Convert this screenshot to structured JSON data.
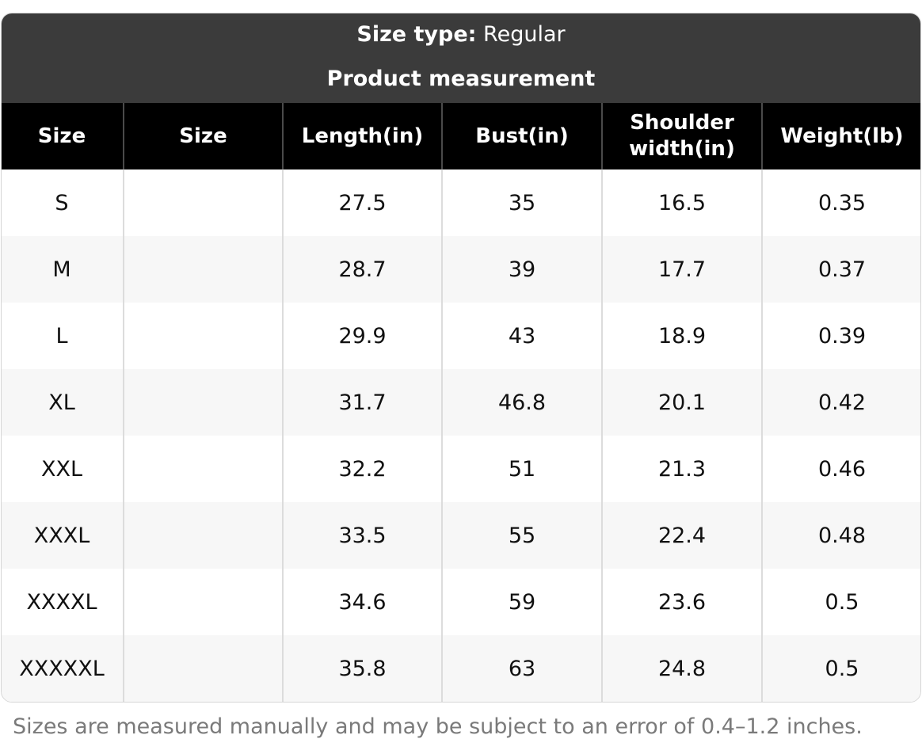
{
  "header": {
    "size_type_label": "Size type:",
    "size_type_value": "Regular",
    "subtitle": "Product measurement"
  },
  "table": {
    "columns": [
      "Size",
      "Size",
      "Length(in)",
      "Bust(in)",
      "Shoulder width(in)",
      "Weight(lb)"
    ],
    "rows": [
      [
        "S",
        "",
        "27.5",
        "35",
        "16.5",
        "0.35"
      ],
      [
        "M",
        "",
        "28.7",
        "39",
        "17.7",
        "0.37"
      ],
      [
        "L",
        "",
        "29.9",
        "43",
        "18.9",
        "0.39"
      ],
      [
        "XL",
        "",
        "31.7",
        "46.8",
        "20.1",
        "0.42"
      ],
      [
        "XXL",
        "",
        "32.2",
        "51",
        "21.3",
        "0.46"
      ],
      [
        "XXXL",
        "",
        "33.5",
        "55",
        "22.4",
        "0.48"
      ],
      [
        "XXXXL",
        "",
        "34.6",
        "59",
        "23.6",
        "0.5"
      ],
      [
        "XXXXXL",
        "",
        "35.8",
        "63",
        "24.8",
        "0.5"
      ]
    ]
  },
  "footer": {
    "note": "Sizes are measured manually and may be subject to an error of 0.4–1.2 inches."
  }
}
